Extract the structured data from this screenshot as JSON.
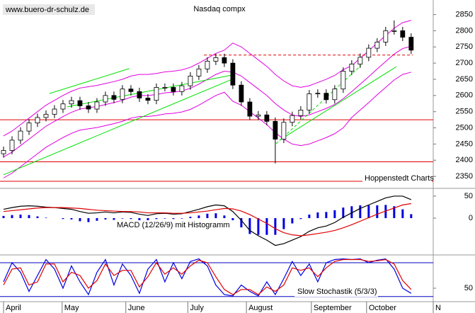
{
  "chart_data": [
    {
      "type": "candlestick",
      "title": "Nasdaq compx",
      "watermark": "www.buero-dr-schulz.de",
      "source": "Hoppenstedt Charts",
      "xlim": [
        0,
        50.6
      ],
      "ylim": [
        2313,
        2895
      ],
      "yticks": [
        2350,
        2400,
        2450,
        2500,
        2550,
        2600,
        2650,
        2700,
        2750,
        2800,
        2850
      ],
      "open": [
        2420,
        2430,
        2462,
        2490,
        2515,
        2532,
        2542,
        2558,
        2574,
        2584,
        2568,
        2558,
        2580,
        2600,
        2588,
        2620,
        2612,
        2592,
        2585,
        2625,
        2625,
        2612,
        2630,
        2660,
        2682,
        2706,
        2717,
        2700,
        2632,
        2580,
        2536,
        2540,
        2520,
        2465,
        2517,
        2538,
        2555,
        2605,
        2607,
        2587,
        2620,
        2675,
        2697,
        2718,
        2746,
        2765,
        2800,
        2800,
        2780
      ],
      "high": [
        2442,
        2474,
        2502,
        2527,
        2544,
        2554,
        2570,
        2586,
        2596,
        2596,
        2580,
        2592,
        2612,
        2612,
        2632,
        2632,
        2624,
        2604,
        2637,
        2637,
        2637,
        2642,
        2672,
        2694,
        2718,
        2729,
        2729,
        2712,
        2644,
        2592,
        2552,
        2552,
        2532,
        2529,
        2550,
        2567,
        2617,
        2619,
        2619,
        2632,
        2687,
        2709,
        2730,
        2758,
        2777,
        2812,
        2832,
        2812,
        2792
      ],
      "low": [
        2408,
        2418,
        2450,
        2478,
        2503,
        2520,
        2530,
        2546,
        2562,
        2556,
        2546,
        2546,
        2568,
        2576,
        2576,
        2600,
        2580,
        2573,
        2573,
        2613,
        2600,
        2600,
        2618,
        2648,
        2670,
        2694,
        2688,
        2620,
        2568,
        2524,
        2524,
        2508,
        2390,
        2453,
        2505,
        2526,
        2543,
        2593,
        2575,
        2575,
        2608,
        2663,
        2685,
        2706,
        2734,
        2753,
        2788,
        2768,
        2728
      ],
      "close": [
        2430,
        2462,
        2490,
        2515,
        2532,
        2542,
        2558,
        2574,
        2584,
        2568,
        2558,
        2580,
        2600,
        2588,
        2620,
        2612,
        2592,
        2585,
        2625,
        2625,
        2612,
        2630,
        2660,
        2682,
        2706,
        2717,
        2700,
        2632,
        2580,
        2536,
        2540,
        2520,
        2465,
        2517,
        2538,
        2555,
        2605,
        2607,
        2587,
        2620,
        2675,
        2697,
        2718,
        2746,
        2765,
        2800,
        2800,
        2780,
        2740
      ],
      "bands": {
        "color": "#e000e0",
        "upper": [
          2475,
          2490,
          2510,
          2530,
          2550,
          2570,
          2585,
          2600,
          2613,
          2623,
          2627,
          2631,
          2637,
          2643,
          2650,
          2660,
          2665,
          2665,
          2668,
          2673,
          2675,
          2679,
          2687,
          2700,
          2715,
          2730,
          2740,
          2762,
          2750,
          2730,
          2710,
          2690,
          2665,
          2645,
          2630,
          2625,
          2630,
          2640,
          2650,
          2662,
          2680,
          2692,
          2715,
          2738,
          2762,
          2785,
          2808,
          2825,
          2832
        ],
        "middle": [
          2410,
          2425,
          2445,
          2465,
          2485,
          2505,
          2520,
          2535,
          2548,
          2558,
          2562,
          2566,
          2572,
          2578,
          2585,
          2595,
          2600,
          2600,
          2603,
          2608,
          2610,
          2614,
          2622,
          2635,
          2650,
          2665,
          2675,
          2672,
          2660,
          2640,
          2620,
          2600,
          2575,
          2555,
          2540,
          2535,
          2540,
          2550,
          2560,
          2572,
          2590,
          2612,
          2635,
          2658,
          2682,
          2705,
          2728,
          2745,
          2752
        ],
        "lower": [
          2345,
          2360,
          2380,
          2400,
          2420,
          2440,
          2455,
          2470,
          2483,
          2493,
          2497,
          2501,
          2507,
          2513,
          2520,
          2530,
          2535,
          2535,
          2538,
          2543,
          2545,
          2549,
          2557,
          2570,
          2585,
          2600,
          2610,
          2582,
          2570,
          2550,
          2530,
          2510,
          2485,
          2465,
          2450,
          2445,
          2450,
          2460,
          2470,
          2482,
          2500,
          2532,
          2555,
          2578,
          2602,
          2625,
          2648,
          2665,
          2672
        ]
      },
      "hlines": {
        "color": "#e00000",
        "values": [
          2525,
          2395,
          2335
        ]
      },
      "lines": [
        {
          "x": [
            5.4,
            14.8
          ],
          "y": [
            2606,
            2683
          ],
          "color": "#00e000",
          "dash": false
        },
        {
          "x": [
            0,
            27.1
          ],
          "y": [
            2355,
            2652
          ],
          "color": "#00e000",
          "dash": false
        },
        {
          "x": [
            7.5,
            27.1
          ],
          "y": [
            2565,
            2664
          ],
          "color": "#00e000",
          "dash": false
        },
        {
          "x": [
            32.5,
            46.25
          ],
          "y": [
            2462,
            2689
          ],
          "color": "#00e000",
          "dash": false
        },
        {
          "x": [
            32.1,
            42.1
          ],
          "y": [
            2451,
            2693
          ],
          "color": "#00e000",
          "dash": true
        },
        {
          "x": [
            23.6,
            48.2
          ],
          "y": [
            2725,
            2725
          ],
          "color": "#e00000",
          "dash": true
        }
      ]
    },
    {
      "type": "macd",
      "title": "MACD (12/26/9) mit Histogramm",
      "xlim": [
        0,
        50.6
      ],
      "ylim": [
        -82,
        66
      ],
      "yticks": [
        50,
        0
      ],
      "series": [
        {
          "name": "MACD",
          "color": "#000000",
          "values": [
            20,
            24,
            27,
            28,
            27,
            25,
            24,
            22,
            20,
            15,
            11,
            12,
            14,
            12,
            14,
            13,
            9,
            6,
            10,
            11,
            9,
            10,
            15,
            20,
            26,
            30,
            28,
            15,
            -5,
            -28,
            -40,
            -50,
            -62,
            -58,
            -50,
            -42,
            -30,
            -22,
            -18,
            -10,
            2,
            12,
            22,
            30,
            38,
            46,
            50,
            50,
            42
          ]
        },
        {
          "name": "Signal",
          "color": "#e00000",
          "values": [
            15,
            17,
            19,
            21,
            23,
            24,
            24,
            24,
            23,
            22,
            20,
            18,
            17,
            16,
            15,
            15,
            14,
            12,
            12,
            12,
            11,
            11,
            12,
            14,
            16,
            19,
            22,
            21,
            16,
            8,
            -2,
            -12,
            -24,
            -33,
            -38,
            -40,
            -38,
            -35,
            -32,
            -28,
            -22,
            -15,
            -7,
            1,
            9,
            16,
            23,
            30,
            33
          ]
        }
      ],
      "histogram": {
        "color": "#0000e0",
        "values": [
          5,
          7,
          8,
          7,
          4,
          1,
          0,
          -2,
          -3,
          -7,
          -9,
          -6,
          -3,
          -4,
          -1,
          -2,
          -5,
          -6,
          -2,
          -1,
          -2,
          -1,
          3,
          6,
          10,
          11,
          6,
          -6,
          -21,
          -36,
          -38,
          -38,
          -38,
          -25,
          -12,
          -2,
          8,
          13,
          14,
          18,
          24,
          27,
          29,
          29,
          29,
          30,
          27,
          20,
          9
        ]
      }
    },
    {
      "type": "stochastic",
      "title": "Slow Stochastik (5/3/3)",
      "xlim": [
        0,
        50.6
      ],
      "ylim": [
        30,
        100
      ],
      "yticks": [
        50
      ],
      "hlines": {
        "color": "#0000c0",
        "values": [
          90,
          37
        ]
      },
      "series": [
        {
          "name": "%K",
          "color": "#0000e0",
          "values": [
            60,
            90,
            75,
            45,
            70,
            95,
            80,
            50,
            85,
            60,
            40,
            75,
            95,
            55,
            88,
            70,
            42,
            80,
            95,
            60,
            90,
            65,
            92,
            96,
            85,
            55,
            40,
            38,
            55,
            45,
            38,
            60,
            40,
            65,
            92,
            70,
            88,
            60,
            90,
            95,
            96,
            95,
            96,
            90,
            94,
            96,
            80,
            50,
            42
          ]
        },
        {
          "name": "%D",
          "color": "#e00000",
          "values": [
            55,
            80,
            82,
            55,
            60,
            88,
            88,
            60,
            75,
            70,
            50,
            62,
            88,
            70,
            78,
            78,
            52,
            68,
            90,
            72,
            82,
            72,
            85,
            94,
            90,
            68,
            48,
            40,
            48,
            48,
            40,
            52,
            45,
            55,
            82,
            78,
            82,
            68,
            82,
            92,
            95,
            95,
            95,
            92,
            93,
            95,
            88,
            62,
            48
          ]
        }
      ],
      "xticks": [
        {
          "value": 0,
          "label": "April"
        },
        {
          "value": 6.9,
          "label": "May"
        },
        {
          "value": 14.4,
          "label": "June"
        },
        {
          "value": 21.7,
          "label": "July"
        },
        {
          "value": 28.6,
          "label": "August"
        },
        {
          "value": 36.25,
          "label": "September"
        },
        {
          "value": 42.75,
          "label": "October"
        },
        {
          "value": 50.6,
          "label": "N"
        }
      ]
    }
  ]
}
